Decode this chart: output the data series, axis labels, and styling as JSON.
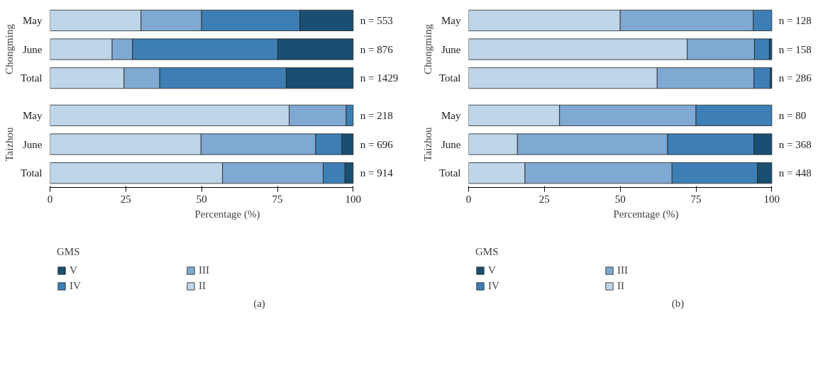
{
  "chart_data": [
    {
      "type": "bar",
      "orientation": "horizontal",
      "stacked": true,
      "ylabel": "Chongming",
      "categories": [
        "May",
        "June",
        "Total"
      ],
      "xlim": [
        0,
        100
      ],
      "xticks": [
        0,
        25,
        50,
        75,
        100
      ],
      "tick_labels": "y",
      "series": [
        {
          "color": "#bfd5e8",
          "values": [
            30.0,
            20.5,
            24.4
          ]
        },
        {
          "color": "#7fa9d2",
          "values": [
            20.0,
            6.7,
            11.8
          ]
        },
        {
          "color": "#3d7fb5",
          "values": [
            32.4,
            47.9,
            41.7
          ]
        },
        {
          "color": "#1a4f72",
          "values": [
            17.6,
            24.9,
            22.1
          ]
        }
      ],
      "annotations": [
        "n = 553",
        "n = 876",
        "n = 1429"
      ]
    },
    {
      "type": "bar",
      "orientation": "horizontal",
      "stacked": true,
      "ylabel": "Taizhou",
      "xlabel": "Percentage (%)",
      "categories": [
        "May",
        "June",
        "Total"
      ],
      "xlim": [
        0,
        100
      ],
      "xticks": [
        0,
        25,
        50,
        75,
        100
      ],
      "legend": "bottom",
      "legend_title": "GMS",
      "series": [
        {
          "name": "II",
          "color": "#bfd5e8",
          "values": [
            78.9,
            49.8,
            56.9
          ]
        },
        {
          "name": "III",
          "color": "#7fa9d2",
          "values": [
            18.8,
            37.8,
            33.2
          ]
        },
        {
          "name": "IV",
          "color": "#3d7fb5",
          "values": [
            2.3,
            8.7,
            7.2
          ]
        },
        {
          "name": "V",
          "color": "#1a4f72",
          "values": [
            0,
            3.7,
            2.7
          ]
        }
      ],
      "annotations": [
        "n = 218",
        "n = 696",
        "n = 914",
        "(a)"
      ]
    },
    {
      "type": "bar",
      "orientation": "horizontal",
      "stacked": true,
      "ylabel": "Chongming",
      "categories": [
        "May",
        "June",
        "Total"
      ],
      "xlim": [
        0,
        100
      ],
      "xticks": [
        0,
        25,
        50,
        75,
        100
      ],
      "tick_labels": "y",
      "series": [
        {
          "color": "#bfd5e8",
          "values": [
            50.0,
            72.1,
            62.2
          ]
        },
        {
          "color": "#7fa9d2",
          "values": [
            43.9,
            22.2,
            31.9
          ]
        },
        {
          "color": "#3d7fb5",
          "values": [
            6.1,
            4.9,
            5.4
          ]
        },
        {
          "color": "#1a4f72",
          "values": [
            0,
            0.8,
            0.5
          ]
        }
      ],
      "annotations": [
        "n = 128",
        "n = 158",
        "n = 286"
      ]
    },
    {
      "type": "bar",
      "orientation": "horizontal",
      "stacked": true,
      "ylabel": "Taizhou",
      "xlabel": "Percentage (%)",
      "categories": [
        "May",
        "June",
        "Total"
      ],
      "xlim": [
        0,
        100
      ],
      "xticks": [
        0,
        25,
        50,
        75,
        100
      ],
      "legend": "bottom",
      "legend_title": "GMS",
      "series": [
        {
          "name": "II",
          "color": "#bfd5e8",
          "values": [
            30.0,
            16.1,
            18.6
          ]
        },
        {
          "name": "III",
          "color": "#7fa9d2",
          "values": [
            45.0,
            49.5,
            48.5
          ]
        },
        {
          "name": "IV",
          "color": "#3d7fb5",
          "values": [
            25.0,
            28.5,
            28.2
          ]
        },
        {
          "name": "V",
          "color": "#1a4f72",
          "values": [
            0,
            5.9,
            4.7
          ]
        }
      ],
      "annotations": [
        "n = 80",
        "n = 368",
        "n = 448",
        "(b)"
      ]
    }
  ]
}
